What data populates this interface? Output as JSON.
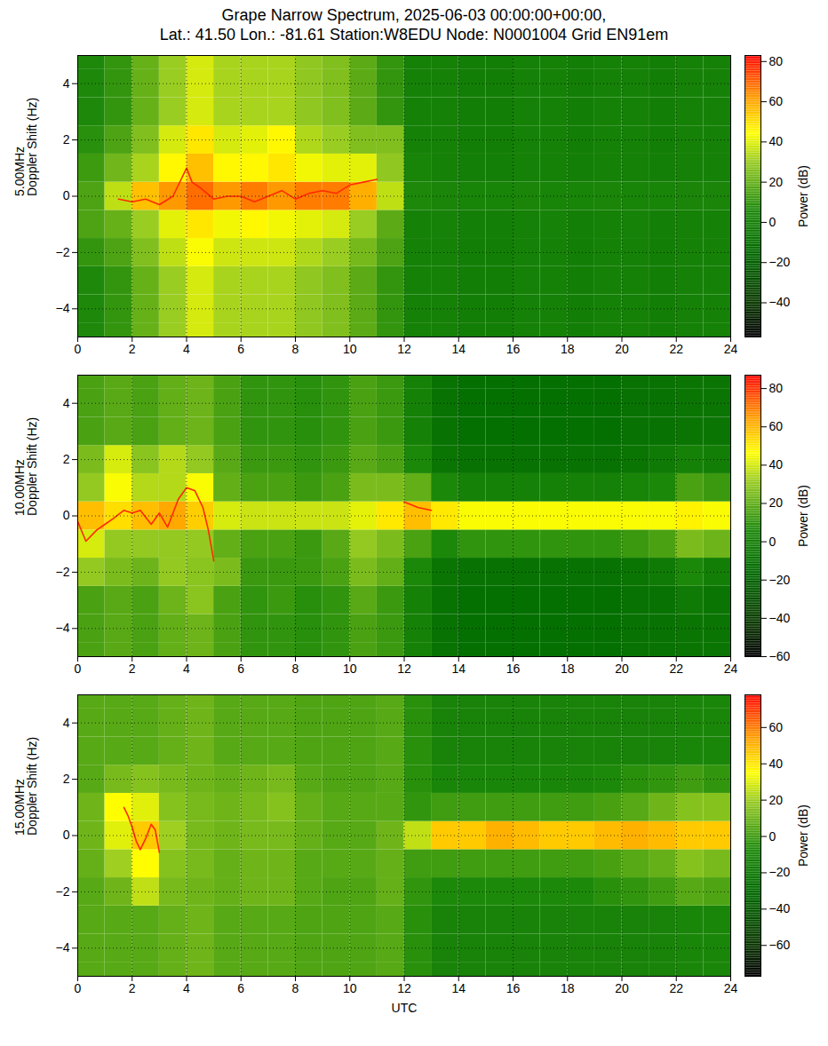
{
  "title": "Grape Narrow Spectrum, 2025-06-03 00:00:00+00:00,\nLat.: 41.50 Lon.: -81.61 Station:W8EDU Node: N0001004 Grid EN91em",
  "chart_data": [
    {
      "type": "heatmap",
      "ylabel": "5.00MHz\nDoppler Shift (Hz)",
      "grid": true,
      "xlim": [
        0,
        24
      ],
      "xticks": [
        0,
        2,
        4,
        6,
        8,
        10,
        12,
        14,
        16,
        18,
        20,
        22,
        24
      ],
      "ylim": [
        -5,
        5
      ],
      "yticks": [
        -4,
        -2,
        0,
        2,
        4
      ],
      "x_bins": [
        0,
        1,
        2,
        3,
        4,
        5,
        6,
        7,
        8,
        9,
        10,
        11,
        12,
        13,
        14,
        15,
        16,
        17,
        18,
        19,
        20,
        21,
        22,
        23,
        24
      ],
      "y_bins": [
        -5.5,
        -4.5,
        -3.5,
        -2.5,
        -1.5,
        -0.5,
        0.5,
        1.5,
        2.5,
        3.5,
        4.5,
        5.5
      ],
      "values": [
        [
          5,
          10,
          20,
          30,
          38,
          32,
          32,
          32,
          28,
          25,
          18,
          10,
          0,
          0,
          -2,
          -2,
          0,
          0,
          -2,
          0,
          0,
          -2,
          0,
          0
        ],
        [
          5,
          10,
          20,
          30,
          38,
          32,
          32,
          32,
          28,
          25,
          18,
          10,
          0,
          0,
          -2,
          -2,
          0,
          0,
          -2,
          0,
          0,
          -2,
          0,
          0
        ],
        [
          5,
          10,
          20,
          30,
          38,
          32,
          32,
          32,
          28,
          25,
          18,
          10,
          0,
          0,
          -2,
          -2,
          0,
          0,
          -2,
          0,
          0,
          -2,
          0,
          0
        ],
        [
          10,
          15,
          25,
          35,
          43,
          37,
          37,
          37,
          33,
          30,
          23,
          15,
          0,
          0,
          -2,
          -2,
          0,
          0,
          -2,
          0,
          0,
          -2,
          0,
          0
        ],
        [
          15,
          20,
          30,
          40,
          48,
          42,
          45,
          42,
          40,
          38,
          30,
          18,
          0,
          1,
          -1,
          -1,
          0,
          1,
          -1,
          0,
          1,
          -1,
          0,
          0
        ],
        [
          15,
          35,
          55,
          62,
          68,
          62,
          66,
          62,
          66,
          66,
          58,
          35,
          5,
          3,
          2,
          2,
          3,
          2,
          2,
          3,
          2,
          2,
          3,
          3
        ],
        [
          12,
          22,
          32,
          45,
          55,
          45,
          45,
          48,
          42,
          40,
          40,
          28,
          2,
          0,
          -1,
          -1,
          0,
          0,
          -1,
          0,
          0,
          -1,
          0,
          0
        ],
        [
          8,
          15,
          25,
          38,
          48,
          38,
          40,
          45,
          33,
          30,
          25,
          25,
          0,
          0,
          -2,
          -2,
          0,
          0,
          -2,
          0,
          0,
          -2,
          0,
          0
        ],
        [
          5,
          10,
          20,
          30,
          38,
          32,
          32,
          32,
          28,
          25,
          18,
          10,
          0,
          0,
          -2,
          -2,
          0,
          0,
          -2,
          0,
          0,
          -2,
          0,
          0
        ],
        [
          5,
          10,
          20,
          30,
          38,
          32,
          32,
          32,
          28,
          25,
          18,
          10,
          0,
          0,
          -2,
          -2,
          0,
          0,
          -2,
          0,
          0,
          -2,
          0,
          0
        ],
        [
          5,
          10,
          20,
          30,
          38,
          32,
          32,
          32,
          28,
          25,
          18,
          10,
          0,
          0,
          -2,
          -2,
          0,
          0,
          -2,
          0,
          0,
          -2,
          0,
          0
        ]
      ],
      "trace": {
        "color": "#ff2a00",
        "x": [
          1.5,
          2,
          2.5,
          3,
          3.5,
          3.8,
          4,
          4.2,
          4.5,
          5,
          5.5,
          6,
          6.5,
          7,
          7.5,
          8,
          8.5,
          9,
          9.5,
          10,
          10.5,
          11
        ],
        "y": [
          -0.1,
          -0.2,
          -0.1,
          -0.3,
          0,
          0.6,
          1.0,
          0.5,
          0.3,
          -0.1,
          0,
          0,
          -0.2,
          0,
          0.2,
          -0.1,
          0.1,
          0.2,
          0.1,
          0.4,
          0.5,
          0.6
        ]
      },
      "colorbar": {
        "label": "Power (dB)",
        "lim": [
          -57,
          83
        ],
        "ticks": [
          -40,
          -20,
          0,
          20,
          40,
          60,
          80
        ]
      }
    },
    {
      "type": "heatmap",
      "ylabel": "10.00MHz\nDoppler Shift (Hz)",
      "grid": true,
      "xlim": [
        0,
        24
      ],
      "xticks": [
        0,
        2,
        4,
        6,
        8,
        10,
        12,
        14,
        16,
        18,
        20,
        22,
        24
      ],
      "ylim": [
        -5,
        5
      ],
      "yticks": [
        -4,
        -2,
        0,
        2,
        4
      ],
      "x_bins": [
        0,
        1,
        2,
        3,
        4,
        5,
        6,
        7,
        8,
        9,
        10,
        11,
        12,
        13,
        14,
        15,
        16,
        17,
        18,
        19,
        20,
        21,
        22,
        23,
        24
      ],
      "y_bins": [
        -5.5,
        -4.5,
        -3.5,
        -2.5,
        -1.5,
        -0.5,
        0.5,
        1.5,
        2.5,
        3.5,
        4.5,
        5.5
      ],
      "values": [
        [
          15,
          18,
          15,
          20,
          22,
          15,
          10,
          10,
          8,
          10,
          15,
          12,
          0,
          -10,
          -12,
          -12,
          -12,
          -12,
          -12,
          -12,
          -10,
          -10,
          -8,
          -8
        ],
        [
          15,
          18,
          15,
          20,
          22,
          15,
          10,
          10,
          8,
          10,
          15,
          12,
          0,
          -10,
          -12,
          -12,
          -12,
          -12,
          -12,
          -12,
          -10,
          -10,
          -8,
          -8
        ],
        [
          15,
          18,
          15,
          22,
          28,
          15,
          10,
          12,
          8,
          10,
          18,
          12,
          0,
          -10,
          -12,
          -12,
          -12,
          -12,
          -12,
          -12,
          -10,
          -10,
          -5,
          -8
        ],
        [
          30,
          25,
          22,
          30,
          28,
          25,
          12,
          12,
          12,
          15,
          25,
          20,
          5,
          -8,
          -10,
          -10,
          -10,
          -10,
          -10,
          -10,
          -8,
          -5,
          5,
          -2
        ],
        [
          40,
          30,
          30,
          30,
          30,
          20,
          15,
          15,
          12,
          18,
          30,
          25,
          15,
          5,
          10,
          10,
          10,
          10,
          10,
          10,
          12,
          15,
          25,
          22
        ],
        [
          58,
          52,
          58,
          62,
          55,
          40,
          38,
          38,
          38,
          38,
          42,
          50,
          58,
          50,
          45,
          45,
          45,
          45,
          45,
          45,
          45,
          45,
          48,
          45
        ],
        [
          30,
          45,
          35,
          35,
          45,
          20,
          15,
          15,
          12,
          15,
          25,
          25,
          20,
          5,
          0,
          0,
          0,
          0,
          0,
          0,
          2,
          5,
          15,
          12
        ],
        [
          25,
          40,
          28,
          35,
          30,
          18,
          12,
          12,
          10,
          12,
          18,
          15,
          5,
          -8,
          -10,
          -10,
          -10,
          -10,
          -10,
          -10,
          -8,
          -5,
          0,
          -2
        ],
        [
          15,
          18,
          15,
          20,
          22,
          15,
          10,
          10,
          8,
          10,
          15,
          12,
          0,
          -10,
          -12,
          -12,
          -12,
          -12,
          -12,
          -12,
          -10,
          -10,
          -8,
          -8
        ],
        [
          15,
          18,
          15,
          20,
          22,
          15,
          10,
          10,
          8,
          10,
          15,
          12,
          0,
          -10,
          -12,
          -12,
          -12,
          -12,
          -12,
          -12,
          -10,
          -10,
          -8,
          -8
        ],
        [
          15,
          18,
          15,
          20,
          22,
          15,
          10,
          10,
          8,
          10,
          15,
          12,
          0,
          -10,
          -12,
          -12,
          -12,
          -12,
          -12,
          -12,
          -10,
          -10,
          -8,
          -8
        ]
      ],
      "trace": {
        "color": "#ff2a00",
        "x": [
          0,
          0.3,
          0.7,
          1,
          1.3,
          1.7,
          2,
          2.3,
          2.7,
          3,
          3.3,
          3.7,
          4,
          4.3,
          4.6,
          4.8,
          5,
          5.01,
          12,
          12.5,
          13
        ],
        "y": [
          -0.2,
          -0.9,
          -0.5,
          -0.3,
          -0.1,
          0.2,
          0.1,
          0.2,
          -0.3,
          0.1,
          -0.4,
          0.6,
          1.0,
          0.9,
          0.3,
          -0.5,
          -1.6,
          null,
          0.5,
          0.3,
          0.2
        ]
      },
      "colorbar": {
        "label": "Power (dB)",
        "lim": [
          -60,
          87
        ],
        "ticks": [
          -60,
          -40,
          -20,
          0,
          20,
          40,
          60,
          80
        ]
      }
    },
    {
      "type": "heatmap",
      "ylabel": "15.00MHz\nDoppler Shift (Hz)",
      "xlabel": "UTC",
      "grid": true,
      "xlim": [
        0,
        24
      ],
      "xticks": [
        0,
        2,
        4,
        6,
        8,
        10,
        12,
        14,
        16,
        18,
        20,
        22,
        24
      ],
      "ylim": [
        -5,
        5
      ],
      "yticks": [
        -4,
        -2,
        0,
        2,
        4
      ],
      "x_bins": [
        0,
        1,
        2,
        3,
        4,
        5,
        6,
        7,
        8,
        9,
        10,
        11,
        12,
        13,
        14,
        15,
        16,
        17,
        18,
        19,
        20,
        21,
        22,
        23,
        24
      ],
      "y_bins": [
        -5.5,
        -4.5,
        -3.5,
        -2.5,
        -1.5,
        -0.5,
        0.5,
        1.5,
        2.5,
        3.5,
        4.5,
        5.5
      ],
      "values": [
        [
          5,
          5,
          5,
          8,
          10,
          5,
          5,
          5,
          3,
          3,
          3,
          5,
          -5,
          -12,
          -12,
          -12,
          -12,
          -12,
          -12,
          -12,
          -12,
          -12,
          -10,
          -10
        ],
        [
          5,
          5,
          5,
          8,
          10,
          5,
          5,
          5,
          3,
          3,
          3,
          5,
          -5,
          -12,
          -12,
          -12,
          -12,
          -12,
          -12,
          -12,
          -12,
          -12,
          -10,
          -10
        ],
        [
          5,
          5,
          5,
          8,
          10,
          5,
          5,
          5,
          3,
          3,
          3,
          5,
          -5,
          -12,
          -12,
          -12,
          -12,
          -12,
          -12,
          -12,
          -12,
          -12,
          -10,
          -10
        ],
        [
          5,
          10,
          25,
          12,
          10,
          8,
          10,
          10,
          5,
          3,
          3,
          8,
          -3,
          -8,
          -8,
          -8,
          -8,
          -8,
          -8,
          -5,
          -3,
          0,
          5,
          3
        ],
        [
          8,
          20,
          35,
          15,
          12,
          8,
          10,
          10,
          5,
          5,
          5,
          8,
          0,
          0,
          0,
          0,
          0,
          0,
          0,
          2,
          5,
          8,
          15,
          12
        ],
        [
          10,
          30,
          45,
          20,
          12,
          10,
          12,
          12,
          8,
          5,
          5,
          10,
          25,
          45,
          45,
          50,
          48,
          45,
          45,
          48,
          50,
          48,
          45,
          45
        ],
        [
          10,
          35,
          30,
          15,
          12,
          10,
          12,
          15,
          8,
          5,
          5,
          5,
          -3,
          0,
          0,
          0,
          0,
          0,
          0,
          2,
          5,
          10,
          15,
          15
        ],
        [
          5,
          12,
          15,
          12,
          10,
          8,
          10,
          12,
          5,
          3,
          3,
          5,
          -5,
          -10,
          -10,
          -10,
          -10,
          -10,
          -10,
          -8,
          -5,
          -3,
          0,
          -3
        ],
        [
          5,
          5,
          5,
          8,
          10,
          5,
          5,
          5,
          3,
          3,
          3,
          5,
          -5,
          -12,
          -12,
          -12,
          -12,
          -12,
          -12,
          -12,
          -12,
          -12,
          -10,
          -10
        ],
        [
          5,
          5,
          5,
          8,
          10,
          5,
          5,
          5,
          3,
          3,
          3,
          5,
          -5,
          -12,
          -12,
          -12,
          -12,
          -12,
          -12,
          -12,
          -12,
          -12,
          -10,
          -10
        ],
        [
          5,
          5,
          5,
          8,
          10,
          5,
          5,
          5,
          3,
          3,
          3,
          5,
          -5,
          -12,
          -12,
          -12,
          -12,
          -12,
          -12,
          -12,
          -12,
          -12,
          -10,
          -10
        ]
      ],
      "trace": {
        "color": "#ff2a00",
        "x": [
          1.7,
          1.85,
          2.0,
          2.15,
          2.3,
          2.5,
          2.7,
          2.85,
          3.0
        ],
        "y": [
          1.0,
          0.7,
          0.3,
          -0.2,
          -0.5,
          -0.1,
          0.4,
          0.2,
          -0.6
        ]
      },
      "colorbar": {
        "label": "Power (dB)",
        "lim": [
          -77,
          78
        ],
        "ticks": [
          -60,
          -40,
          -20,
          0,
          20,
          40,
          60
        ]
      }
    }
  ]
}
